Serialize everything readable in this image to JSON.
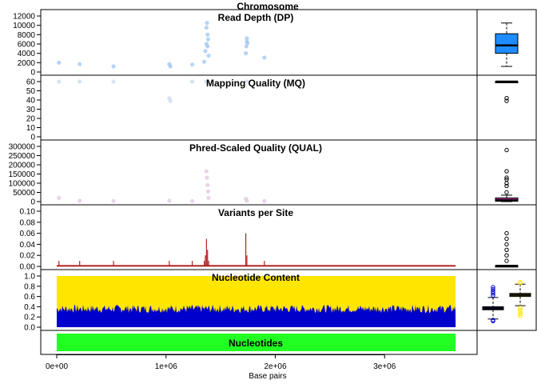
{
  "figure_title": "Chromosome",
  "x_axis": {
    "label": "Base pairs",
    "range": [
      0,
      3700000
    ],
    "ticks": [
      0,
      1000000,
      2000000,
      3000000
    ],
    "tick_labels": [
      "0e+00",
      "1e+06",
      "2e+06",
      "3e+06"
    ]
  },
  "chart_data": [
    {
      "type": "scatter",
      "title": "Read Depth (DP)",
      "ylim": [
        0,
        12000
      ],
      "yticks": [
        0,
        2000,
        4000,
        6000,
        8000,
        10000,
        12000
      ],
      "color": "#9ec5f0",
      "points": {
        "x": [
          20000,
          210000,
          520000,
          1030000,
          1040000,
          1240000,
          1350000,
          1360000,
          1370000,
          1370000,
          1375000,
          1380000,
          1380000,
          1385000,
          1390000,
          1730000,
          1735000,
          1740000,
          1740000,
          1745000,
          1900000
        ],
        "y": [
          2000,
          1700,
          1200,
          1700,
          1200,
          1600,
          2200,
          4500,
          6000,
          9500,
          10500,
          8000,
          5500,
          7000,
          3500,
          4000,
          5500,
          6500,
          7200,
          6200,
          3100
        ]
      },
      "boxplot": {
        "min": 1200,
        "q1": 4000,
        "median": 5700,
        "q3": 8200,
        "max": 10500,
        "fill": "#1e8cff",
        "outliers": []
      }
    },
    {
      "type": "scatter",
      "title": "Mapping Quality (MQ)",
      "ylim": [
        0,
        60
      ],
      "yticks": [
        0,
        10,
        20,
        30,
        40,
        50,
        60
      ],
      "color": "#c9daf0",
      "points": {
        "x": [
          20000,
          210000,
          520000,
          1030000,
          1040000,
          1240000,
          1370000,
          1380000,
          1740000
        ],
        "y": [
          60,
          60,
          60,
          42,
          39,
          60,
          60,
          60,
          60
        ]
      },
      "boxplot": {
        "min": 59,
        "q1": 59.5,
        "median": 60,
        "q3": 60,
        "max": 60,
        "fill": "#1e8cff",
        "outliers": [
          42,
          39
        ]
      }
    },
    {
      "type": "scatter",
      "title": "Phred-Scaled Quality (QUAL)",
      "ylim": [
        0,
        300000
      ],
      "yticks": [
        0,
        50000,
        100000,
        150000,
        200000,
        250000,
        300000
      ],
      "color": "#e2c6e2",
      "points": {
        "x": [
          20000,
          210000,
          520000,
          1030000,
          1240000,
          1370000,
          1375000,
          1380000,
          1385000,
          1390000,
          1730000,
          1740000,
          1900000
        ],
        "y": [
          20000,
          5000,
          3000,
          5000,
          3000,
          165000,
          130000,
          90000,
          55000,
          20000,
          15000,
          5000,
          3000
        ]
      },
      "boxplot": {
        "min": 0,
        "q1": 2000,
        "median": 7000,
        "q3": 20000,
        "max": 35000,
        "fill": "#b03090",
        "outliers": [
          50000,
          85000,
          100000,
          120000,
          130000,
          165000,
          280000
        ]
      }
    },
    {
      "type": "bar",
      "title": "Variants per Site",
      "ylim": [
        0,
        0.1
      ],
      "yticks": [
        0,
        0.02,
        0.04,
        0.06,
        0.08,
        0.1
      ],
      "color": "#b22222",
      "spikes": {
        "x": [
          20000,
          210000,
          520000,
          1030000,
          1240000,
          1350000,
          1360000,
          1370000,
          1380000,
          1390000,
          1730000,
          1740000,
          1900000
        ],
        "y": [
          0.01,
          0.01,
          0.01,
          0.01,
          0.01,
          0.01,
          0.02,
          0.05,
          0.03,
          0.01,
          0.06,
          0.02,
          0.01
        ]
      },
      "baseline": 0.001,
      "boxplot": {
        "min": 0,
        "q1": 0,
        "median": 0.001,
        "q3": 0.001,
        "max": 0.002,
        "fill": "#000000",
        "outliers": [
          0.01,
          0.02,
          0.03,
          0.04,
          0.05,
          0.06
        ]
      }
    },
    {
      "type": "area",
      "title": "Nucleotide Content",
      "ylim": [
        0,
        1
      ],
      "yticks": [
        0,
        0.2,
        0.4,
        0.6,
        0.8,
        1.0
      ],
      "series": [
        {
          "color": "#0000cc",
          "mean": 0.37
        },
        {
          "color": "#ffe600",
          "mean": 0.63
        }
      ],
      "boxplots": [
        {
          "min": 0.16,
          "q1": 0.34,
          "median": 0.37,
          "q3": 0.4,
          "max": 0.58,
          "fill": "#0000cc",
          "outliers": [
            0.62,
            0.66,
            0.7,
            0.74,
            0.78,
            0.14,
            0.12
          ]
        },
        {
          "min": 0.42,
          "q1": 0.6,
          "median": 0.63,
          "q3": 0.66,
          "max": 0.84,
          "fill": "#ffe600",
          "outliers": [
            0.86,
            0.88,
            0.38,
            0.34,
            0.3,
            0.26,
            0.22
          ]
        }
      ]
    },
    {
      "type": "bar",
      "title": "Nucleotides",
      "color": "#22ff22"
    }
  ]
}
